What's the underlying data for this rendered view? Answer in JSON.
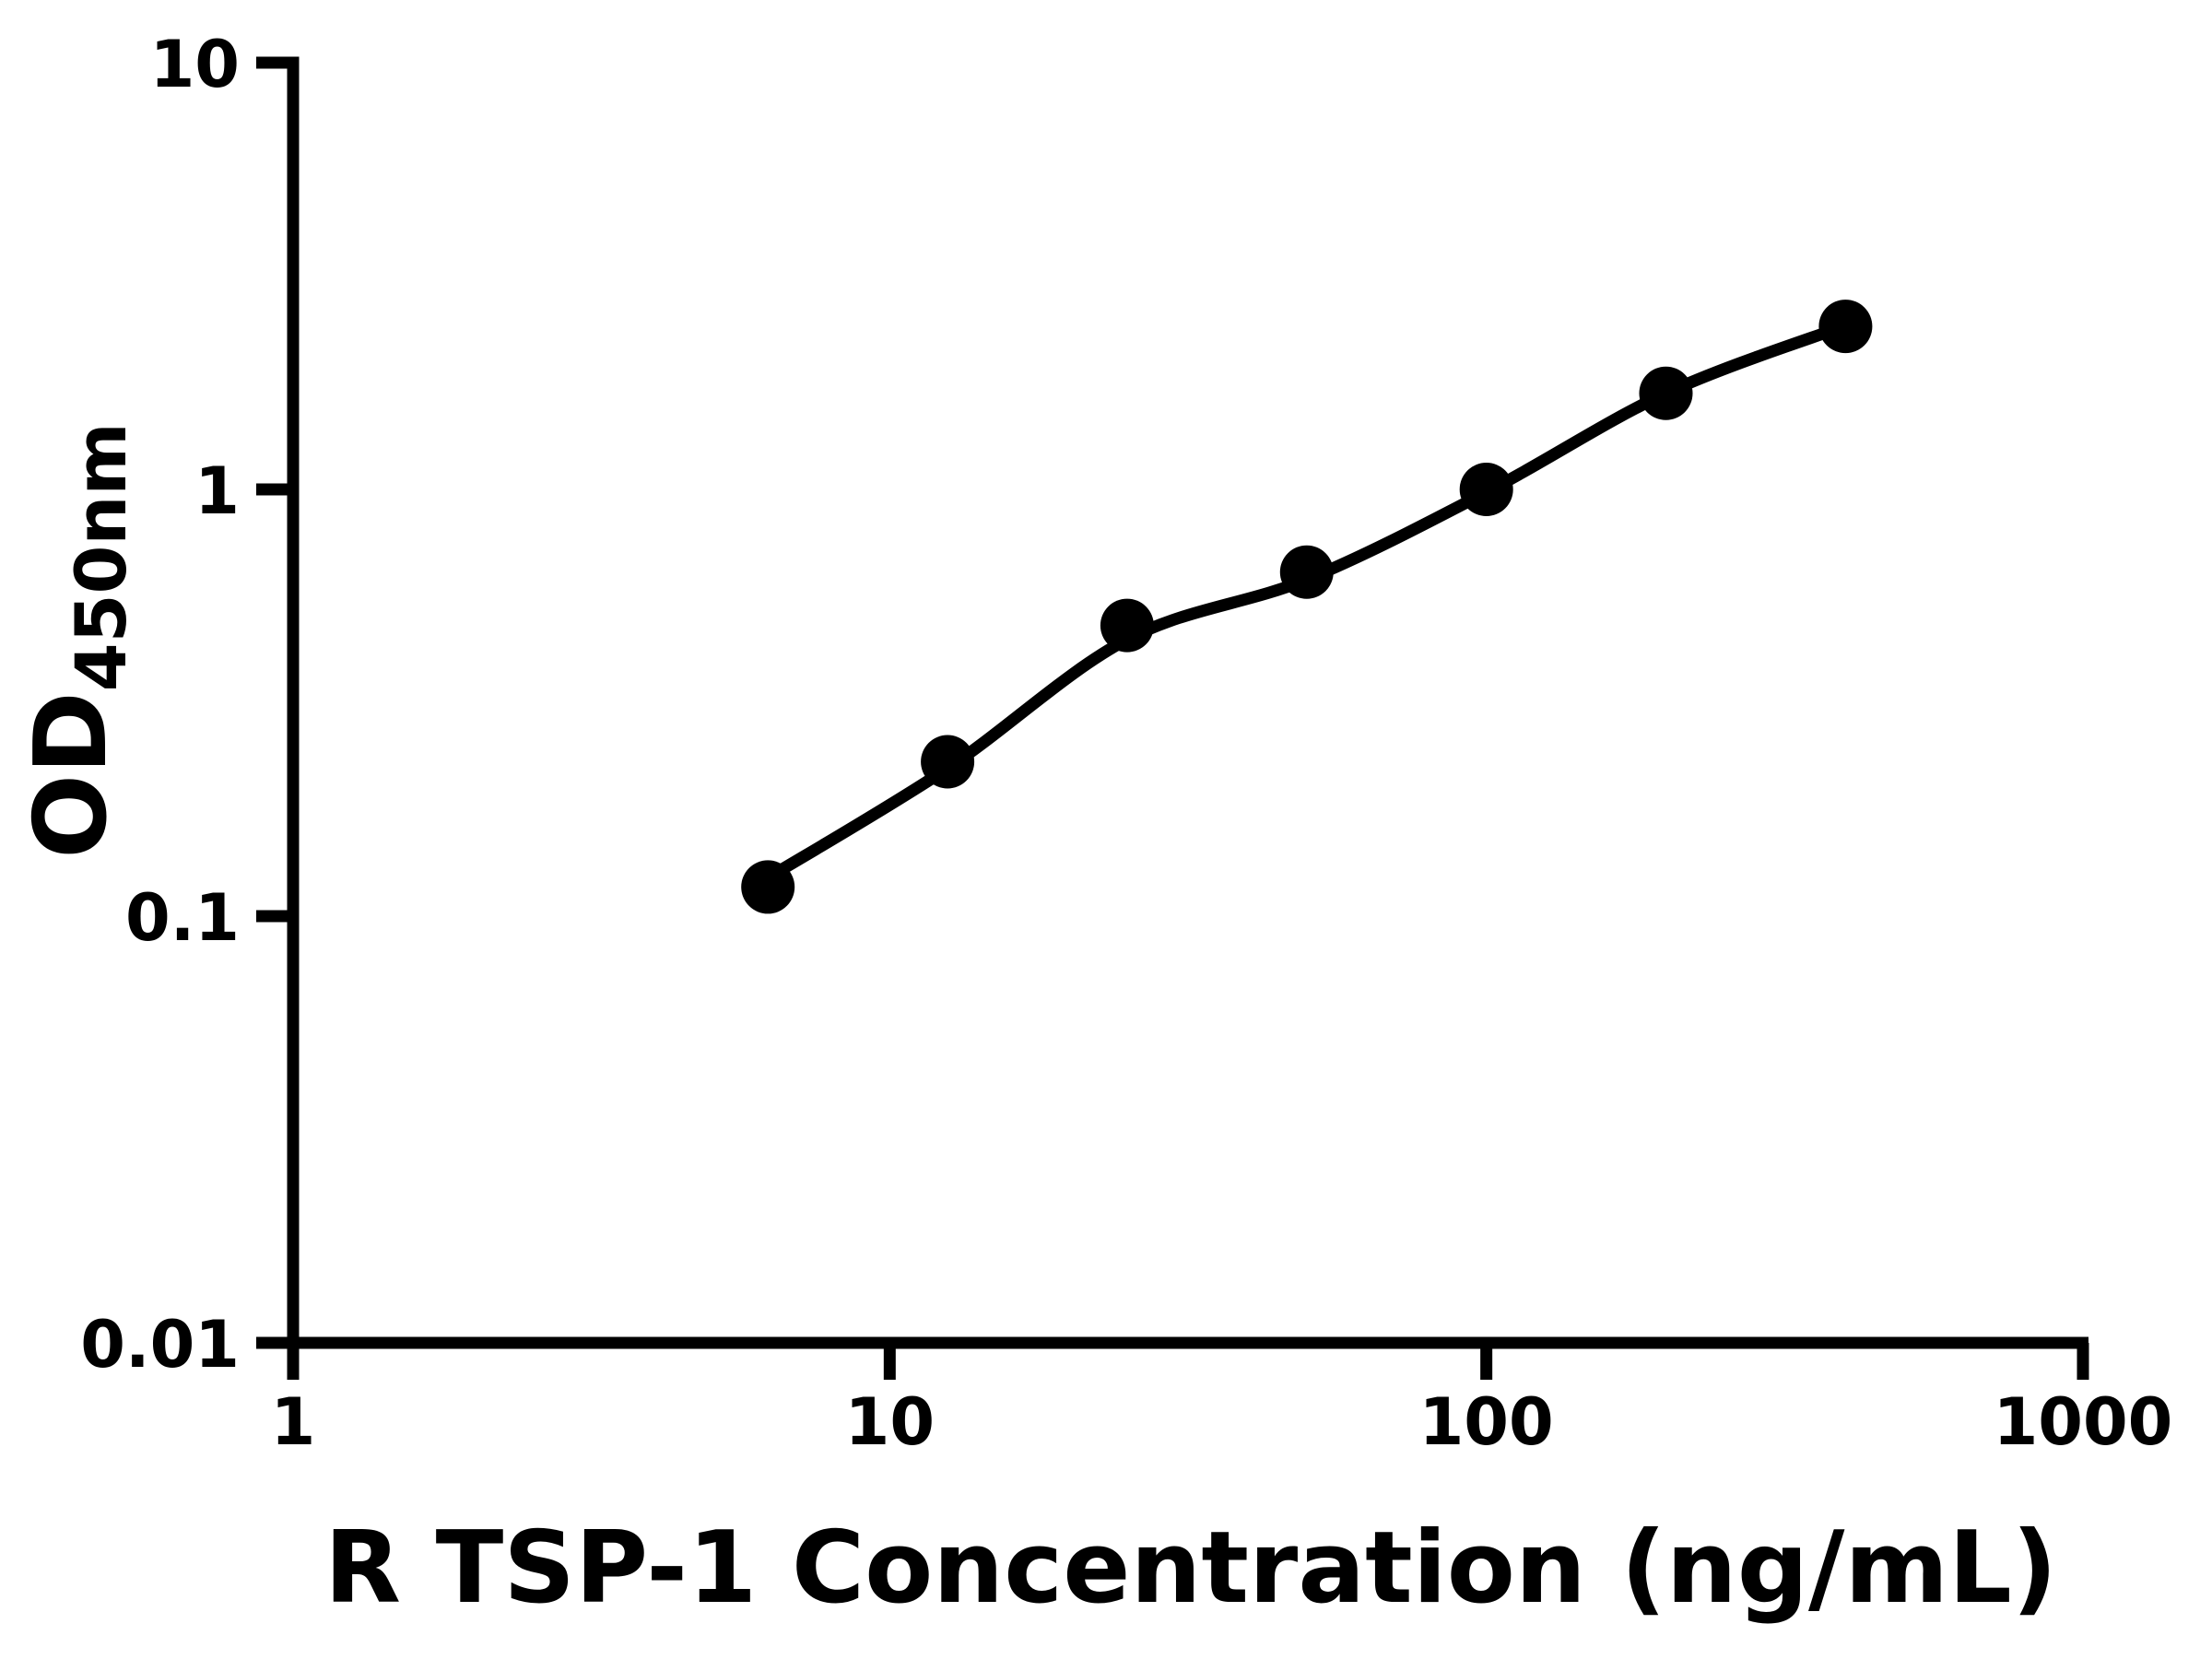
{
  "chart_data": {
    "type": "scatter",
    "title": "",
    "xlabel": "R TSP-1 Concentration (ng/mL)",
    "ylabel": "OD",
    "ylabel_subscript": "450nm",
    "x_scale": "log",
    "y_scale": "log",
    "xlim": [
      1,
      1000
    ],
    "ylim": [
      0.01,
      10
    ],
    "x_ticks": [
      1,
      10,
      100,
      1000
    ],
    "x_tick_labels": [
      "1",
      "10",
      "100",
      "1000"
    ],
    "y_ticks": [
      10,
      1,
      0.1,
      0.01
    ],
    "y_tick_labels": [
      "10",
      "1",
      "0.1",
      "0.01"
    ],
    "grid": false,
    "legend": "none",
    "series": [
      {
        "name": "standard-points",
        "style": "filled-circle-markers",
        "x": [
          6.25,
          12.5,
          25,
          50,
          100,
          200,
          400
        ],
        "y": [
          0.117,
          0.23,
          0.48,
          0.64,
          1.0,
          1.68,
          2.41
        ]
      },
      {
        "name": "fitted-curve",
        "style": "smooth-line",
        "x": [
          6.25,
          12.5,
          25,
          50,
          100,
          200,
          400
        ],
        "y": [
          0.123,
          0.222,
          0.445,
          0.615,
          0.985,
          1.68,
          2.42
        ]
      }
    ],
    "colors": {
      "background": "#ffffff",
      "axis": "#000000",
      "marker": "#000000",
      "line": "#000000",
      "text": "#000000"
    }
  }
}
